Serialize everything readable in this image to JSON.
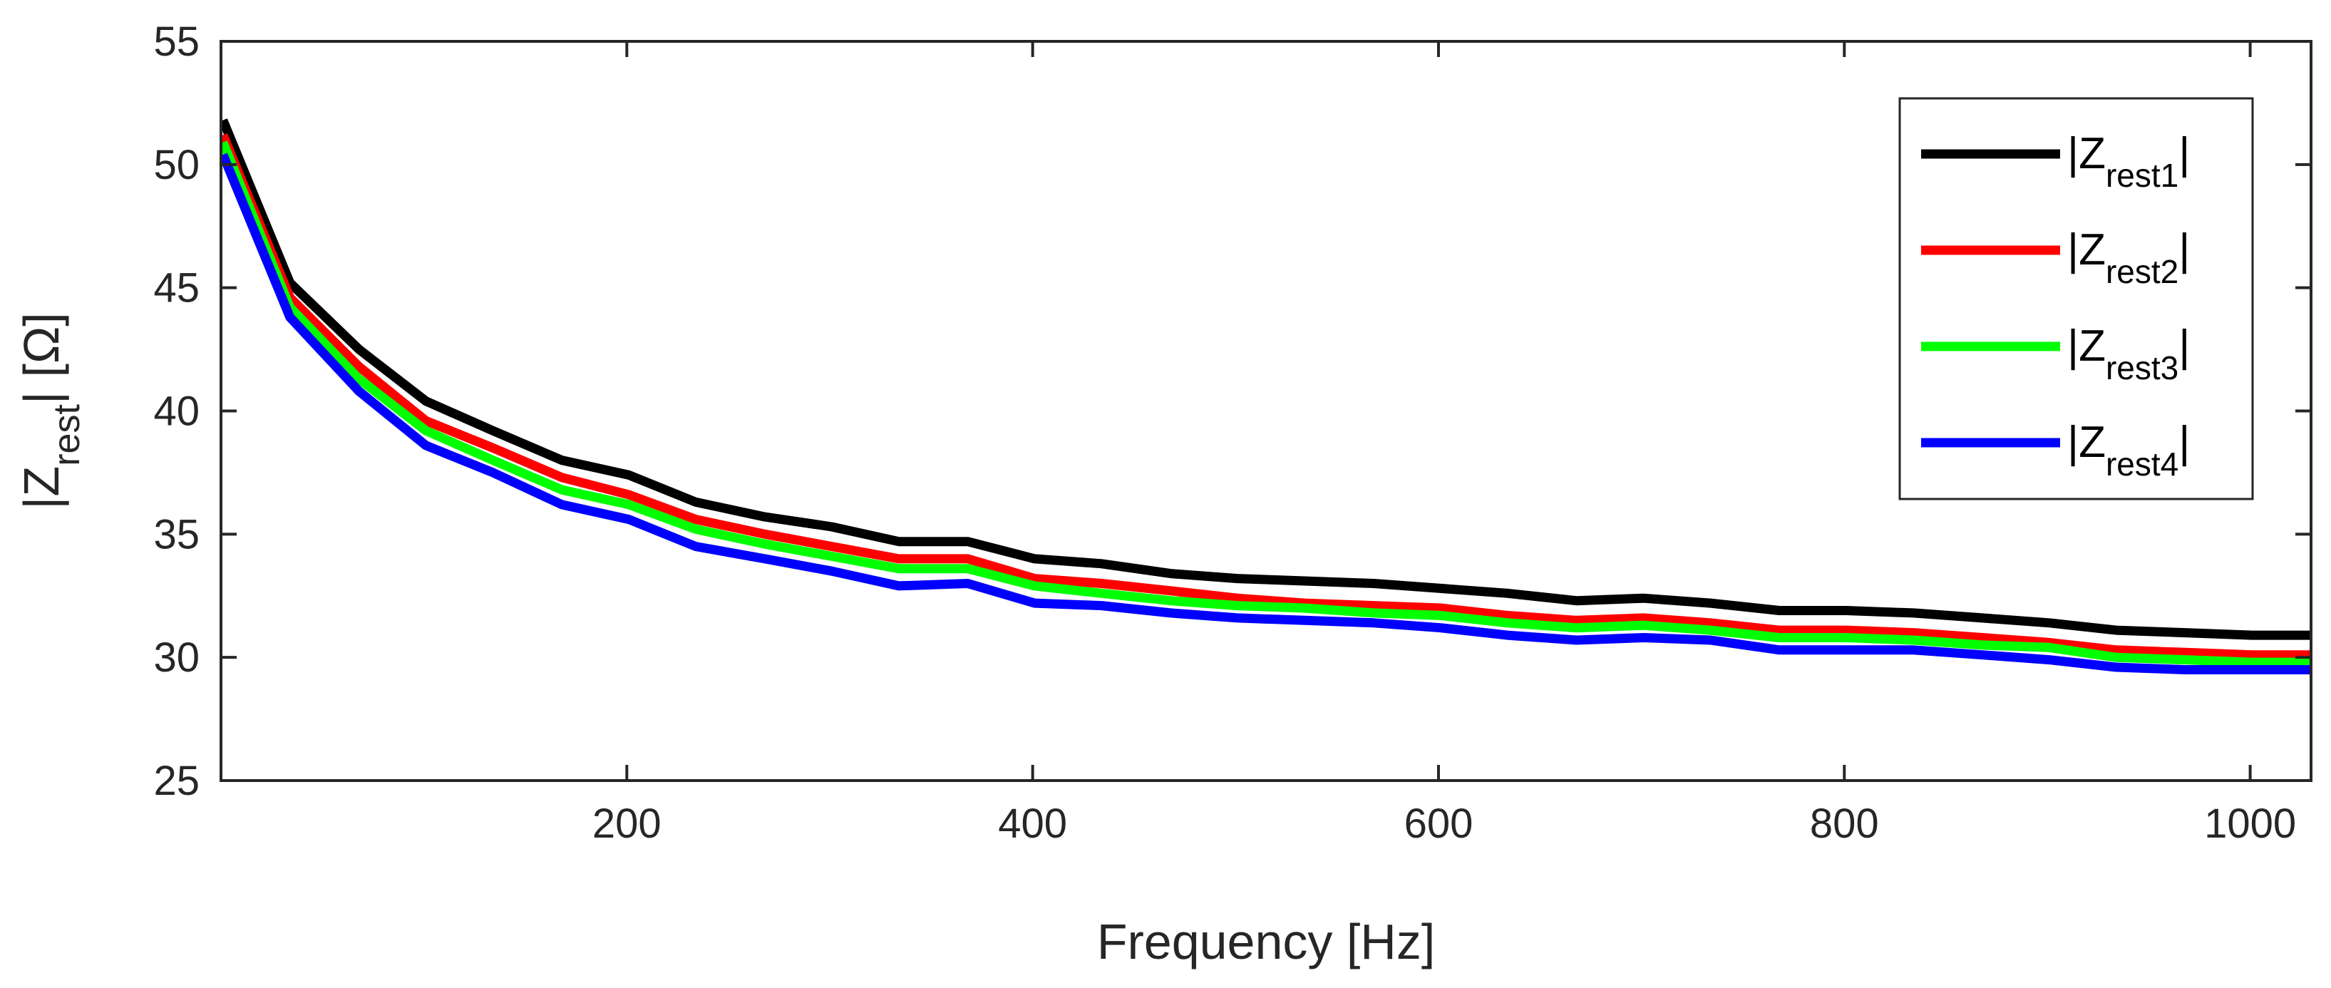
{
  "chart_data": {
    "type": "line",
    "title": "",
    "xlabel": "Frequency [Hz]",
    "ylabel": {
      "prefix": "|Z",
      "subscript": "rest",
      "suffix": "| [Ω]"
    },
    "xlim": [
      0,
      1030
    ],
    "ylim": [
      25,
      55
    ],
    "xticks": [
      200,
      400,
      600,
      800,
      1000
    ],
    "xtick_labels": [
      "200",
      "400",
      "600",
      "800",
      "1000"
    ],
    "yticks": [
      25,
      30,
      35,
      40,
      45,
      50,
      55
    ],
    "ytick_labels": [
      "25",
      "30",
      "35",
      "40",
      "45",
      "50",
      "55"
    ],
    "grid": false,
    "legend_position": "top-right",
    "x": [
      1,
      34,
      68,
      101,
      134,
      168,
      201,
      234,
      268,
      301,
      334,
      368,
      401,
      434,
      468,
      501,
      534,
      568,
      601,
      634,
      668,
      701,
      734,
      768,
      801,
      834,
      868,
      901,
      934,
      968,
      1001,
      1030
    ],
    "series": [
      {
        "name": "|Zrest1|",
        "label_main": "|Z",
        "label_sub": "rest1",
        "label_end": "|",
        "color": "#000000",
        "values": [
          51.8,
          45.2,
          42.5,
          40.4,
          39.2,
          38.0,
          37.4,
          36.3,
          35.7,
          35.3,
          34.7,
          34.7,
          34.0,
          33.8,
          33.4,
          33.2,
          33.1,
          33.0,
          32.8,
          32.6,
          32.3,
          32.4,
          32.2,
          31.9,
          31.9,
          31.8,
          31.6,
          31.4,
          31.1,
          31.0,
          30.9,
          30.9
        ]
      },
      {
        "name": "|Zrest2|",
        "label_main": "|Z",
        "label_sub": "rest2",
        "label_end": "|",
        "color": "#ff0000",
        "values": [
          51.2,
          44.6,
          41.8,
          39.6,
          38.5,
          37.3,
          36.6,
          35.6,
          35.0,
          34.5,
          34.0,
          34.0,
          33.2,
          33.0,
          32.7,
          32.4,
          32.2,
          32.1,
          32.0,
          31.7,
          31.5,
          31.6,
          31.4,
          31.1,
          31.1,
          31.0,
          30.8,
          30.6,
          30.3,
          30.2,
          30.1,
          30.1
        ]
      },
      {
        "name": "|Zrest3|",
        "label_main": "|Z",
        "label_sub": "rest3",
        "label_end": "|",
        "color": "#00ff00",
        "values": [
          50.9,
          44.2,
          41.3,
          39.2,
          38.0,
          36.8,
          36.2,
          35.2,
          34.6,
          34.1,
          33.6,
          33.6,
          32.9,
          32.6,
          32.3,
          32.1,
          32.0,
          31.8,
          31.7,
          31.4,
          31.2,
          31.3,
          31.1,
          30.8,
          30.8,
          30.7,
          30.5,
          30.4,
          30.0,
          29.9,
          29.8,
          29.8
        ]
      },
      {
        "name": "|Zrest4|",
        "label_main": "|Z",
        "label_sub": "rest4",
        "label_end": "|",
        "color": "#0000ff",
        "values": [
          50.4,
          43.8,
          40.8,
          38.6,
          37.5,
          36.2,
          35.6,
          34.5,
          34.0,
          33.5,
          32.9,
          33.0,
          32.2,
          32.1,
          31.8,
          31.6,
          31.5,
          31.4,
          31.2,
          30.9,
          30.7,
          30.8,
          30.7,
          30.3,
          30.3,
          30.3,
          30.1,
          29.9,
          29.6,
          29.5,
          29.5,
          29.5
        ]
      }
    ]
  }
}
